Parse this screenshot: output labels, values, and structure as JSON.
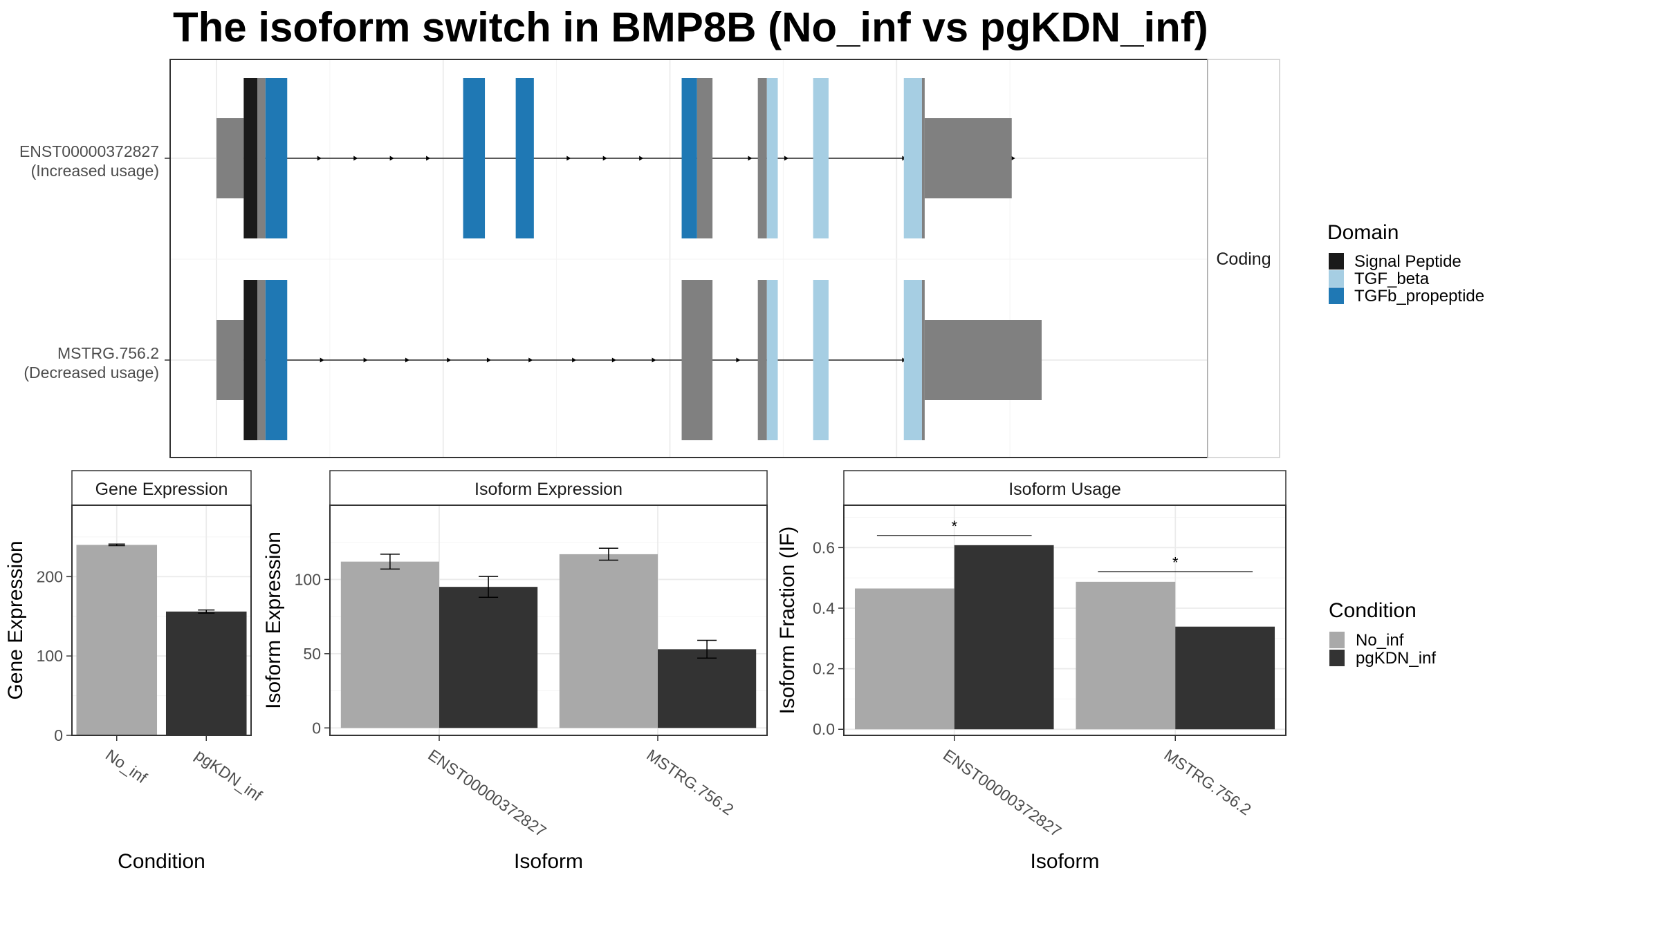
{
  "title": "The isoform switch in BMP8B (No_inf vs pgKDN_inf)",
  "colors": {
    "no_inf": "#A9A9A9",
    "pgkdn_inf": "#333333",
    "signal_peptide": "#1A1A1A",
    "tgf_beta": "#A6CEE3",
    "tgfb_propeptide": "#1F78B4",
    "utr": "#808080"
  },
  "chart_data": [
    {
      "type": "gene-structure",
      "title": "The isoform switch in BMP8B (No_inf vs pgKDN_inf)",
      "strip_label": "Coding",
      "x_range": [
        0,
        1000
      ],
      "transcripts": [
        {
          "id": "ENST00000372827",
          "usage": "(Increased usage)",
          "intron_span": [
            30,
            770
          ],
          "arrows": [
            115,
            155,
            195,
            235,
            390,
            430,
            470,
            590,
            630,
            760,
            880
          ],
          "segments": [
            {
              "start": 0,
              "end": 30,
              "kind": "utr"
            },
            {
              "start": 30,
              "end": 45,
              "kind": "cds",
              "domain": "signal_peptide"
            },
            {
              "start": 45,
              "end": 54,
              "kind": "cds",
              "domain": "none"
            },
            {
              "start": 54,
              "end": 78,
              "kind": "cds",
              "domain": "tgfb_propeptide"
            },
            {
              "start": 272,
              "end": 296,
              "kind": "cds",
              "domain": "tgfb_propeptide"
            },
            {
              "start": 330,
              "end": 350,
              "kind": "cds",
              "domain": "tgfb_propeptide"
            },
            {
              "start": 513,
              "end": 530,
              "kind": "cds",
              "domain": "tgfb_propeptide"
            },
            {
              "start": 530,
              "end": 547,
              "kind": "cds",
              "domain": "none"
            },
            {
              "start": 597,
              "end": 607,
              "kind": "cds",
              "domain": "none"
            },
            {
              "start": 607,
              "end": 619,
              "kind": "cds",
              "domain": "tgf_beta"
            },
            {
              "start": 658,
              "end": 675,
              "kind": "cds",
              "domain": "tgf_beta"
            },
            {
              "start": 758,
              "end": 778,
              "kind": "cds",
              "domain": "tgf_beta"
            },
            {
              "start": 778,
              "end": 781,
              "kind": "cds",
              "domain": "none"
            },
            {
              "start": 781,
              "end": 877,
              "kind": "utr"
            }
          ]
        },
        {
          "id": "MSTRG.756.2",
          "usage": "(Decreased usage)",
          "intron_span": [
            30,
            770
          ],
          "arrows": [
            118,
            166,
            212,
            258,
            302,
            348,
            396,
            440,
            484,
            532,
            577,
            760,
            880
          ],
          "segments": [
            {
              "start": 0,
              "end": 30,
              "kind": "utr"
            },
            {
              "start": 30,
              "end": 45,
              "kind": "cds",
              "domain": "signal_peptide"
            },
            {
              "start": 45,
              "end": 54,
              "kind": "cds",
              "domain": "none"
            },
            {
              "start": 54,
              "end": 78,
              "kind": "cds",
              "domain": "tgfb_propeptide"
            },
            {
              "start": 513,
              "end": 547,
              "kind": "cds",
              "domain": "none"
            },
            {
              "start": 597,
              "end": 607,
              "kind": "cds",
              "domain": "none"
            },
            {
              "start": 607,
              "end": 619,
              "kind": "cds",
              "domain": "tgf_beta"
            },
            {
              "start": 658,
              "end": 675,
              "kind": "cds",
              "domain": "tgf_beta"
            },
            {
              "start": 758,
              "end": 778,
              "kind": "cds",
              "domain": "tgf_beta"
            },
            {
              "start": 778,
              "end": 781,
              "kind": "cds",
              "domain": "none"
            },
            {
              "start": 781,
              "end": 910,
              "kind": "utr"
            }
          ]
        }
      ],
      "legend": {
        "title": "Domain",
        "items": [
          {
            "key": "signal_peptide",
            "label": "Signal Peptide"
          },
          {
            "key": "tgf_beta",
            "label": "TGF_beta"
          },
          {
            "key": "tgfb_propeptide",
            "label": "TGFb_propeptide"
          }
        ]
      }
    },
    {
      "type": "bar",
      "title": "Gene Expression",
      "xlabel": "Condition",
      "ylabel": "Gene Expression",
      "ylim": [
        0,
        290
      ],
      "yticks": [
        0,
        100,
        200
      ],
      "categories": [
        "No_inf",
        "pgKDN_inf"
      ],
      "values": [
        240,
        156
      ],
      "errors": [
        1,
        2
      ]
    },
    {
      "type": "bar",
      "title": "Isoform Expression",
      "xlabel": "Isoform",
      "ylabel": "Isoform Expression",
      "ylim": [
        -5,
        150
      ],
      "yticks": [
        0,
        50,
        100
      ],
      "categories": [
        "ENST00000372827",
        "MSTRG.756.2"
      ],
      "series": [
        {
          "name": "No_inf",
          "values": [
            112,
            117
          ],
          "errors": [
            5,
            4
          ]
        },
        {
          "name": "pgKDN_inf",
          "values": [
            95,
            53
          ],
          "errors": [
            7,
            6
          ]
        }
      ]
    },
    {
      "type": "bar",
      "title": "Isoform Usage",
      "xlabel": "Isoform",
      "ylabel": "Isoform Fraction (IF)",
      "ylim": [
        -0.02,
        0.74
      ],
      "yticks": [
        0.0,
        0.2,
        0.4,
        0.6
      ],
      "ytick_labels": [
        "0.0",
        "0.2",
        "0.4",
        "0.6"
      ],
      "categories": [
        "ENST00000372827",
        "MSTRG.756.2"
      ],
      "series": [
        {
          "name": "No_inf",
          "values": [
            0.465,
            0.487
          ]
        },
        {
          "name": "pgKDN_inf",
          "values": [
            0.608,
            0.339
          ]
        }
      ],
      "significance": [
        {
          "category": "ENST00000372827",
          "label": "*",
          "y": 0.64
        },
        {
          "category": "MSTRG.756.2",
          "label": "*",
          "y": 0.52
        }
      ]
    }
  ],
  "condition_legend": {
    "title": "Condition",
    "items": [
      {
        "key": "no_inf",
        "label": "No_inf"
      },
      {
        "key": "pgkdn_inf",
        "label": "pgKDN_inf"
      }
    ]
  }
}
